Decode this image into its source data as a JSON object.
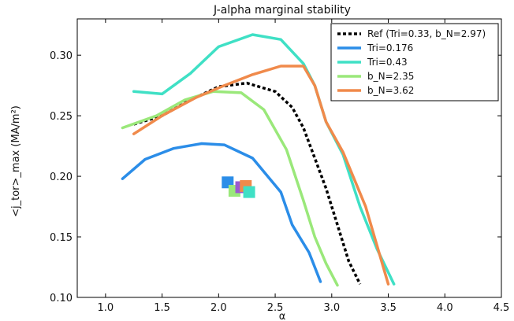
{
  "chart_data": {
    "type": "line",
    "title": "J-alpha marginal stability",
    "xlabel": "α",
    "ylabel": "<j_tor>_max (MA/m²)",
    "xlim": [
      0.75,
      4.5
    ],
    "ylim": [
      0.1,
      0.33
    ],
    "xticks": [
      1.0,
      1.5,
      2.0,
      2.5,
      3.0,
      3.5,
      4.0,
      4.5
    ],
    "yticks": [
      0.1,
      0.15,
      0.2,
      0.25,
      0.3
    ],
    "xtick_labels": [
      "1.0",
      "1.5",
      "2.0",
      "2.5",
      "3.0",
      "3.5",
      "4.0",
      "4.5"
    ],
    "ytick_labels": [
      "0.10",
      "0.15",
      "0.20",
      "0.25",
      "0.30"
    ],
    "grid": false,
    "legend_position": "top-right",
    "series": [
      {
        "name": "Ref (Tri=0.33, b_N=2.97)",
        "color": "#000000",
        "dash": "dashed",
        "x": [
          1.25,
          1.5,
          1.75,
          2.0,
          2.25,
          2.5,
          2.65,
          2.75,
          2.85,
          2.95,
          3.05,
          3.15,
          3.25
        ],
        "y": [
          0.243,
          0.25,
          0.263,
          0.274,
          0.277,
          0.27,
          0.257,
          0.24,
          0.215,
          0.19,
          0.16,
          0.13,
          0.111
        ]
      },
      {
        "name": "Tri=0.176",
        "color": "#2b8de8",
        "dash": "solid",
        "x": [
          1.15,
          1.35,
          1.6,
          1.85,
          2.05,
          2.3,
          2.55,
          2.65,
          2.8,
          2.9
        ],
        "y": [
          0.198,
          0.214,
          0.223,
          0.227,
          0.226,
          0.215,
          0.187,
          0.16,
          0.137,
          0.113
        ]
      },
      {
        "name": "Tri=0.43",
        "color": "#3fe0c5",
        "dash": "solid",
        "x": [
          1.25,
          1.5,
          1.75,
          2.0,
          2.3,
          2.55,
          2.75,
          2.85,
          2.95,
          3.1,
          3.25,
          3.4,
          3.55
        ],
        "y": [
          0.27,
          0.268,
          0.285,
          0.307,
          0.317,
          0.313,
          0.293,
          0.275,
          0.245,
          0.218,
          0.175,
          0.14,
          0.111
        ]
      },
      {
        "name": "b_N=2.35",
        "color": "#9ae87a",
        "dash": "solid",
        "x": [
          1.15,
          1.45,
          1.7,
          1.95,
          2.2,
          2.4,
          2.6,
          2.75,
          2.85,
          2.95,
          3.05
        ],
        "y": [
          0.24,
          0.25,
          0.263,
          0.27,
          0.269,
          0.255,
          0.222,
          0.18,
          0.15,
          0.128,
          0.11
        ]
      },
      {
        "name": "b_N=3.62",
        "color": "#f08a4b",
        "dash": "solid",
        "x": [
          1.25,
          1.5,
          1.8,
          2.05,
          2.3,
          2.55,
          2.75,
          2.85,
          2.95,
          3.1,
          3.3,
          3.5
        ],
        "y": [
          0.235,
          0.25,
          0.265,
          0.275,
          0.284,
          0.291,
          0.291,
          0.275,
          0.245,
          0.22,
          0.175,
          0.111
        ]
      }
    ],
    "markers": [
      {
        "x": 2.08,
        "y": 0.195,
        "color": "#2b8de8"
      },
      {
        "x": 2.14,
        "y": 0.188,
        "color": "#9ae87a"
      },
      {
        "x": 2.2,
        "y": 0.191,
        "color": "#9b59d0"
      },
      {
        "x": 2.24,
        "y": 0.192,
        "color": "#f08a4b"
      },
      {
        "x": 2.27,
        "y": 0.187,
        "color": "#3fe0c5"
      }
    ]
  }
}
